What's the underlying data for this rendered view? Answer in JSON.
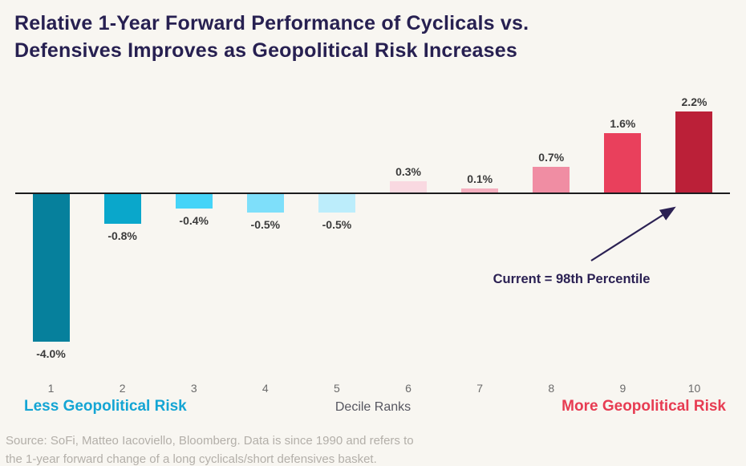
{
  "header": {
    "title_line1": "Relative 1-Year Forward Performance of Cyclicals vs.",
    "title_line2": "Defensives Improves as Geopolitical Risk Increases"
  },
  "chart_data": {
    "type": "bar",
    "title": "Relative 1-Year Forward Performance of Cyclicals vs. Defensives Improves as Geopolitical Risk Increases",
    "categories": [
      "1",
      "2",
      "3",
      "4",
      "5",
      "6",
      "7",
      "8",
      "9",
      "10"
    ],
    "values": [
      -4.0,
      -0.8,
      -0.4,
      -0.5,
      -0.5,
      0.3,
      0.1,
      0.7,
      1.6,
      2.2
    ],
    "value_labels": [
      "-4.0%",
      "-0.8%",
      "-0.4%",
      "-0.5%",
      "-0.5%",
      "0.3%",
      "0.1%",
      "0.7%",
      "1.6%",
      "2.2%"
    ],
    "bar_colors": [
      "#06809C",
      "#0AA7CB",
      "#45D4F8",
      "#7EDFFA",
      "#BCEDFB",
      "#F9D9E1",
      "#F5AFBF",
      "#F08DA3",
      "#E9405C",
      "#BB2038"
    ],
    "units": "percent",
    "xlabel": "Decile Ranks",
    "x_axis_left_caption": "Less Geopolitical Risk",
    "x_axis_right_caption": "More Geopolitical Risk",
    "annotation": "Current = 98th Percentile",
    "annotation_points_to": "10",
    "ylim": [
      -4.5,
      2.6
    ],
    "baseline": 0,
    "grid": false,
    "legend": false
  },
  "source": {
    "line1": "Source: SoFi, Matteo Iacoviello, Bloomberg. Data is since 1990 and refers to",
    "line2": "the 1-year forward change of a long cyclicals/short defensives basket."
  },
  "colors": {
    "background": "#F8F6F1",
    "title_text": "#272051",
    "axis_line": "#1C1C1E",
    "annotation_text": "#2B2153",
    "value_label_text": "#3B3B3B",
    "tick_label_text": "#6B6B6B",
    "left_caption_text": "#14A5D4",
    "right_caption_text": "#E73C52",
    "source_text": "#B3AFA9"
  }
}
